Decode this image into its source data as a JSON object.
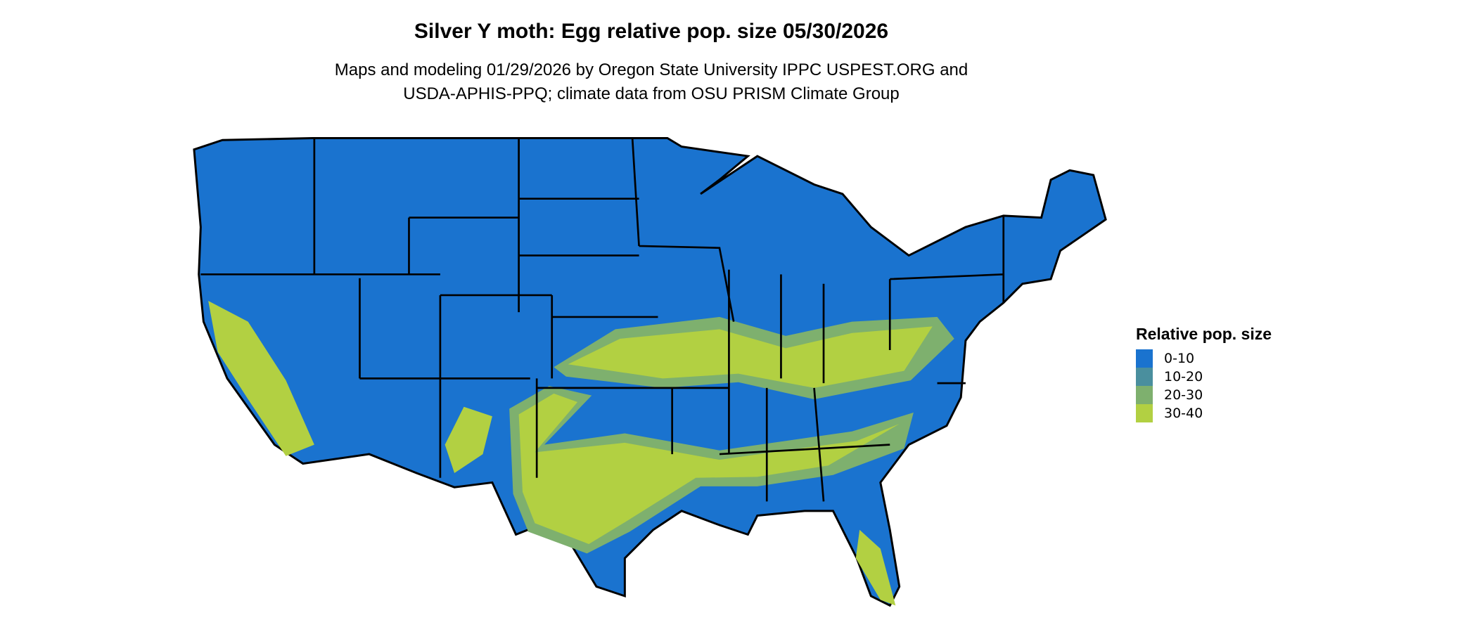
{
  "title": "Silver Y moth: Egg relative pop. size 05/30/2026",
  "subtitle_line1": "Maps and modeling 01/29/2026 by Oregon State University IPPC USPEST.ORG and",
  "subtitle_line2": "USDA-APHIS-PPQ; climate data from OSU PRISM Climate Group",
  "chart_data": {
    "type": "map",
    "region": "Contiguous United States",
    "legend": {
      "title": "Relative pop. size",
      "placement": "right",
      "items": [
        {
          "label": "0-10",
          "color": "#1a73cf"
        },
        {
          "label": "10-20",
          "color": "#4a8f9e"
        },
        {
          "label": "20-30",
          "color": "#7eb06e"
        },
        {
          "label": "30-40",
          "color": "#b2d042"
        }
      ]
    }
  }
}
